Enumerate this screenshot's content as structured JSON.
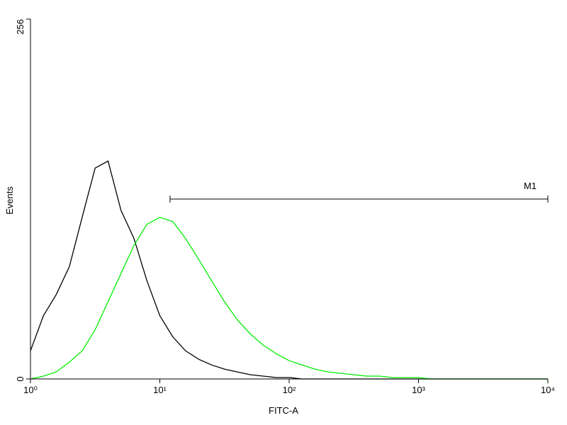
{
  "chart_data": {
    "type": "histogram-line",
    "xlabel": "FITC-A",
    "ylabel": "Events",
    "xscale": "log",
    "xlim": [
      1,
      10000
    ],
    "ylim": [
      0,
      256
    ],
    "xticks": [
      {
        "value": 1,
        "label": "10⁰"
      },
      {
        "value": 10,
        "label": "10¹"
      },
      {
        "value": 100,
        "label": "10²"
      },
      {
        "value": 1000,
        "label": "10³"
      },
      {
        "value": 10000,
        "label": "10⁴"
      }
    ],
    "yticks": [
      0,
      256
    ],
    "x": [
      1,
      1.26,
      1.58,
      2,
      2.51,
      3.16,
      3.98,
      5.01,
      6.31,
      7.94,
      10,
      12.6,
      15.8,
      20,
      25.1,
      31.6,
      39.8,
      50.1,
      63.1,
      79.4,
      100,
      126,
      158,
      200,
      251,
      316,
      398,
      501,
      631,
      794,
      1000,
      1259,
      1585,
      1995,
      2512,
      3162,
      3981,
      5012,
      6310,
      7943,
      10000
    ],
    "series": [
      {
        "color": "#000000",
        "values": [
          20,
          45,
          60,
          80,
          115,
          150,
          155,
          120,
          100,
          70,
          45,
          30,
          20,
          14,
          10,
          7,
          5,
          3,
          2,
          1,
          1,
          0,
          0,
          0,
          0,
          0,
          0,
          0,
          0,
          0,
          0,
          0,
          0,
          0,
          0,
          0,
          0,
          0,
          0,
          0,
          0
        ]
      },
      {
        "color": "#00ee00",
        "values": [
          0,
          2,
          5,
          12,
          20,
          35,
          55,
          75,
          95,
          110,
          115,
          112,
          100,
          85,
          70,
          55,
          42,
          32,
          24,
          18,
          13,
          10,
          7,
          5,
          4,
          3,
          2,
          2,
          1,
          1,
          1,
          0,
          0,
          0,
          0,
          0,
          0,
          0,
          0,
          0,
          0
        ]
      }
    ],
    "marker": {
      "label": "M1",
      "range": [
        12,
        10000
      ],
      "level": 128
    }
  }
}
